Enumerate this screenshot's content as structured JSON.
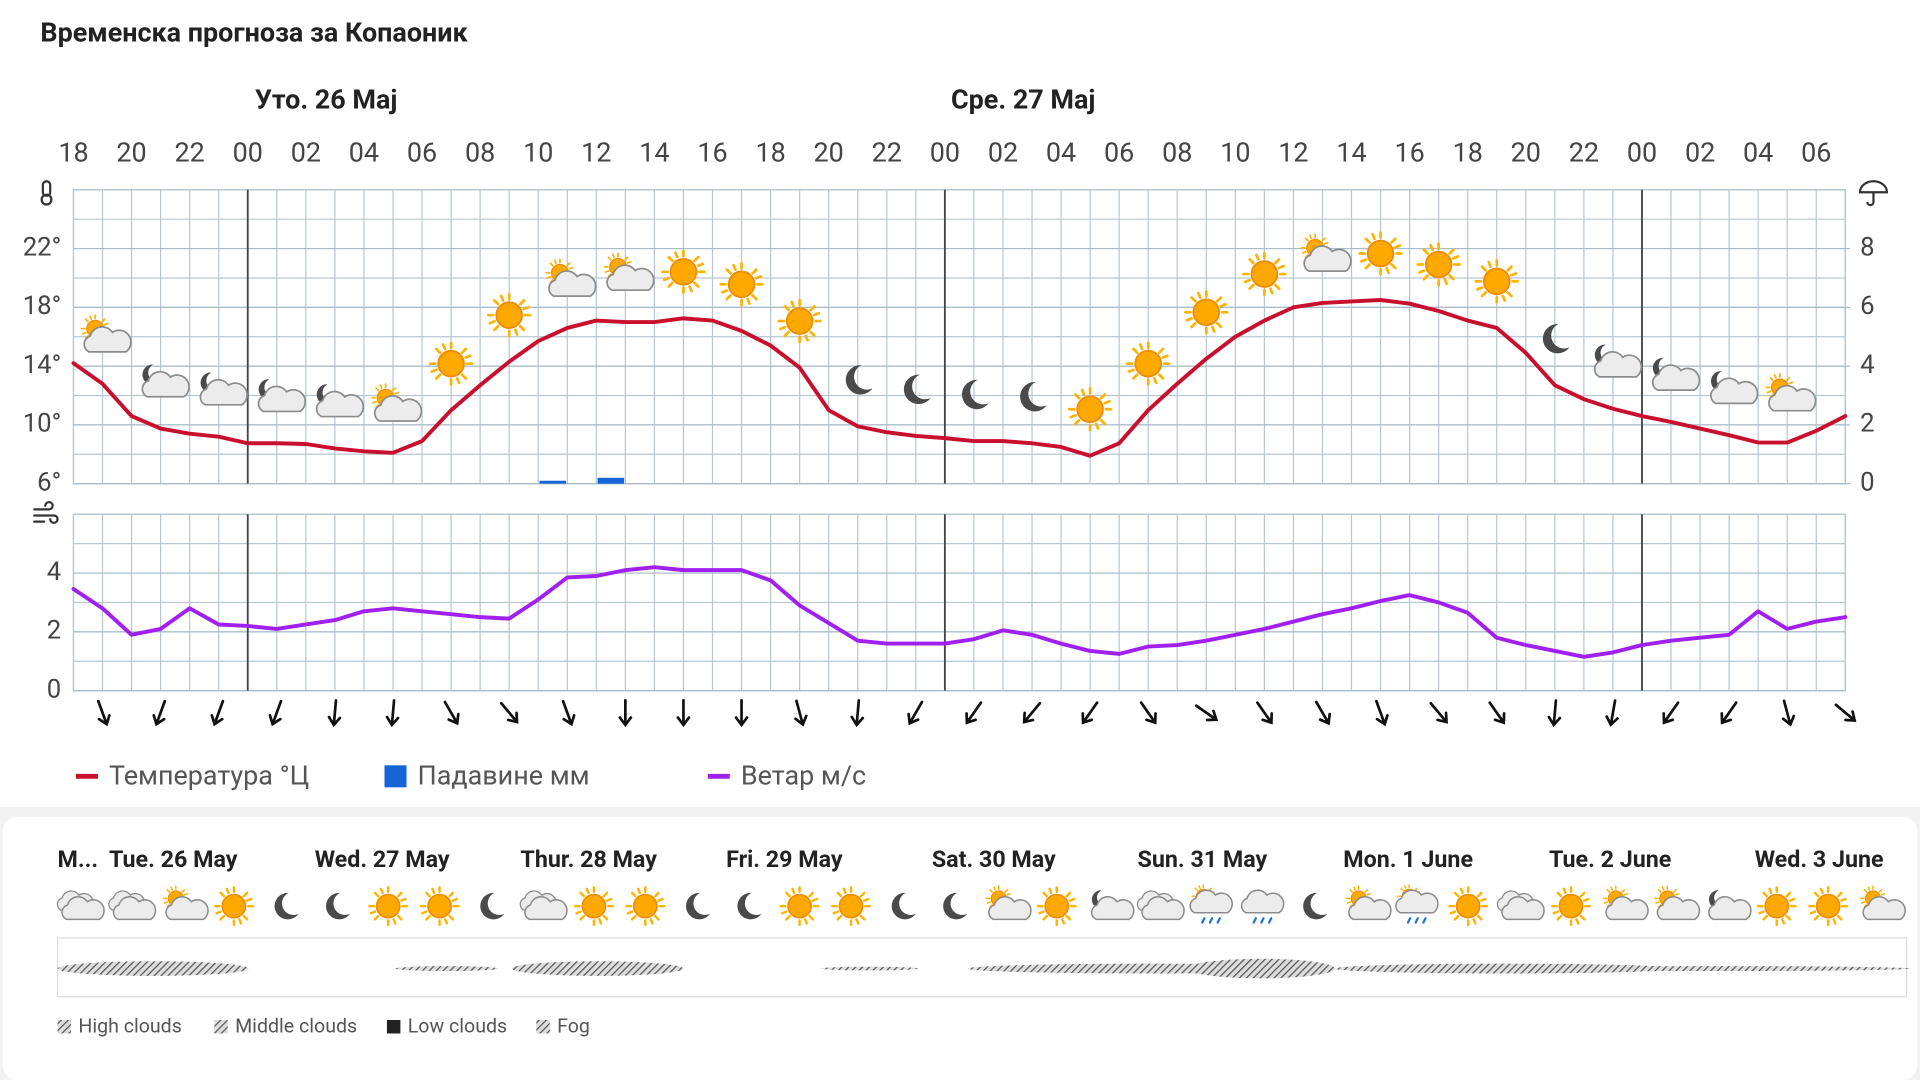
{
  "title": "Временска прогноза за Копаоник",
  "chart_data": [
    {
      "type": "line",
      "days": [
        "Уто. 26 Мај",
        "Сре. 27 Мај"
      ],
      "categories": [
        "18",
        null,
        "20",
        null,
        "22",
        null,
        "00",
        null,
        "02",
        null,
        "04",
        null,
        "06",
        null,
        "08",
        null,
        "10",
        null,
        "12",
        null,
        "14",
        null,
        "16",
        null,
        "18",
        null,
        "20",
        null,
        "22",
        null,
        "00",
        null,
        "02",
        null,
        "04",
        null,
        "06",
        null,
        "08",
        null,
        "10",
        null,
        "12",
        null,
        "14",
        null,
        "16",
        null,
        "18",
        null,
        "20",
        null,
        "22",
        null,
        "00",
        null,
        "02",
        null,
        "04",
        null,
        "06",
        null
      ],
      "ylim": [
        6,
        26
      ],
      "yticks": [
        {
          "value": 6,
          "label": "6°"
        },
        {
          "value": 10,
          "label": "10°"
        },
        {
          "value": 14,
          "label": "14°"
        },
        {
          "value": 18,
          "label": "18°"
        },
        {
          "value": 22,
          "label": "22°"
        }
      ],
      "y2lim": [
        0,
        10
      ],
      "y2ticks": [
        0,
        2,
        4,
        6,
        8
      ],
      "grid": true,
      "series": [
        {
          "name": "Температура °Ц",
          "color": "#c8102e",
          "values": [
            14.2,
            12.8,
            10.6,
            9.75,
            9.4,
            9.2,
            8.75,
            8.75,
            8.7,
            8.4,
            8.2,
            8.1,
            8.9,
            11,
            12.7,
            14.3,
            15.7,
            16.6,
            17.1,
            17,
            17,
            17.25,
            17.1,
            16.4,
            15.4,
            13.9,
            11,
            9.9,
            9.5,
            9.25,
            9.1,
            8.9,
            8.9,
            8.75,
            8.5,
            7.9,
            8.75,
            11,
            12.8,
            14.5,
            16,
            17.1,
            18,
            18.3,
            18.4,
            18.5,
            18.25,
            17.75,
            17.1,
            16.6,
            14.9,
            12.7,
            11.75,
            11.1,
            10.6,
            10.2,
            9.75,
            9.3,
            8.8,
            8.8,
            9.6,
            10.6
          ]
        },
        {
          "name": "Падавине мм",
          "color": "#1565d8",
          "type": "bar",
          "axis": "y2",
          "values": [
            0,
            0,
            0,
            0,
            0,
            0,
            0,
            0,
            0,
            0,
            0,
            0,
            0,
            0,
            0,
            0,
            0.1,
            0,
            0.2,
            0,
            0,
            0,
            0,
            0,
            0,
            0,
            0,
            0,
            0,
            0,
            0,
            0,
            0,
            0,
            0,
            0,
            0,
            0,
            0,
            0,
            0,
            0,
            0,
            0,
            0,
            0,
            0,
            0,
            0,
            0,
            0,
            0,
            0,
            0,
            0,
            0,
            0,
            0,
            0,
            0,
            0,
            0
          ]
        }
      ]
    },
    {
      "type": "line",
      "ylim": [
        0,
        6
      ],
      "yticks": [
        0,
        2,
        4
      ],
      "grid": true,
      "series": [
        {
          "name": "Ветар м/с",
          "color": "#a020f0",
          "values": [
            3.46,
            2.8,
            1.9,
            2.1,
            2.8,
            2.25,
            2.2,
            2.1,
            2.25,
            2.4,
            2.7,
            2.8,
            2.7,
            2.6,
            2.5,
            2.45,
            3.1,
            3.85,
            3.9,
            4.1,
            4.2,
            4.1,
            4.1,
            4.1,
            3.75,
            2.9,
            2.3,
            1.7,
            1.6,
            1.6,
            1.6,
            1.75,
            2.05,
            1.9,
            1.6,
            1.35,
            1.25,
            1.5,
            1.55,
            1.7,
            1.9,
            2.1,
            2.35,
            2.6,
            2.8,
            3.05,
            3.25,
            3.0,
            2.65,
            1.8,
            1.55,
            1.35,
            1.15,
            1.3,
            1.55,
            1.7,
            1.8,
            1.9,
            2.7,
            2.1,
            2.35,
            2.5
          ]
        }
      ],
      "wind_direction": [
        -20,
        20,
        20,
        20,
        5,
        5,
        -30,
        -40,
        -20,
        0,
        0,
        0,
        -15,
        5,
        30,
        35,
        40,
        35,
        -35,
        -55,
        -35,
        -30,
        -20,
        -40,
        -35,
        5,
        10,
        35,
        35,
        -15,
        -50
      ]
    }
  ],
  "daily": {
    "days": [
      "M...",
      "Tue. 26 May",
      "Wed. 27 May",
      "Thur. 28 May",
      "Fri. 29 May",
      "Sat. 30 May",
      "Sun. 31 May",
      "Mon. 1 June",
      "Tue. 2 June",
      "Wed. 3 June"
    ],
    "cloud_legend": [
      "High clouds",
      "Middle clouds",
      "Low clouds",
      "Fog"
    ]
  }
}
